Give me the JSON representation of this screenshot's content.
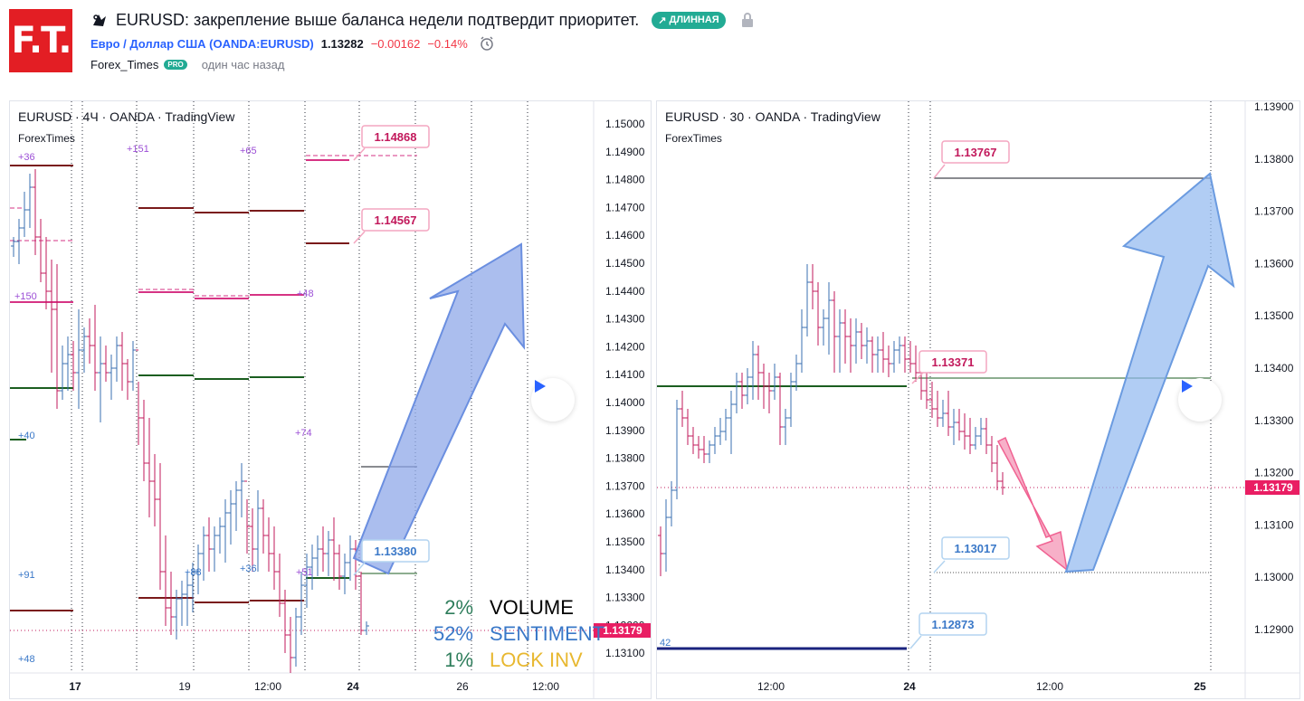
{
  "header": {
    "logo_text": "F.T.",
    "title": "EURUSD: закрепление выше баланса недели подтвердит приоритет.",
    "badge_long": "ДЛИННАЯ",
    "symbol_name": "Евро / Доллар США (OANDA:EURUSD)",
    "price": "1.13282",
    "change_abs": "−0.00162",
    "change_pct": "−0.14%",
    "author": "Forex_Times",
    "author_badge": "PRO",
    "time_ago": "один час назад"
  },
  "left_chart": {
    "legend": "EURUSD · 4Ч · OANDA · TradingView",
    "sub": "ForexTimes",
    "y_ticks": [
      "1.15000",
      "1.14900",
      "1.14800",
      "1.14700",
      "1.14600",
      "1.14500",
      "1.14400",
      "1.14300",
      "1.14200",
      "1.14100",
      "1.14000",
      "1.13900",
      "1.13800",
      "1.13700",
      "1.13600",
      "1.13500",
      "1.13400",
      "1.13300",
      "1.13200",
      "1.13100"
    ],
    "x_ticks": [
      "17",
      "19",
      "12:00",
      "24",
      "26",
      "12:00"
    ],
    "price_tag": "1.13179",
    "callouts": [
      "1.14868",
      "1.14567",
      "1.13380"
    ],
    "small_labels": [
      "+36",
      "+151",
      "+65",
      "+150",
      "+48",
      "+40",
      "+74",
      "+91",
      "+88",
      "+36",
      "+51",
      "+48"
    ],
    "stats": [
      {
        "value": "2%",
        "label": "VOLUME",
        "value_color": "#2e7d5b",
        "label_color": "#000000"
      },
      {
        "value": "52%",
        "label": "SENTIMENT",
        "value_color": "#3a78c8",
        "label_color": "#3a78c8"
      },
      {
        "value": "1%",
        "label": "LOCK INV",
        "value_color": "#2e7d5b",
        "label_color": "#e8b830"
      }
    ]
  },
  "right_chart": {
    "legend": "EURUSD · 30 · OANDA · TradingView",
    "sub": "ForexTimes",
    "y_ticks": [
      "1.13900",
      "1.13800",
      "1.13700",
      "1.13600",
      "1.13500",
      "1.13400",
      "1.13300",
      "1.13200",
      "1.13100",
      "1.13000",
      "1.12900"
    ],
    "x_ticks": [
      "12:00",
      "24",
      "12:00",
      "25"
    ],
    "price_tag": "1.13179",
    "callouts": [
      "1.13767",
      "1.13371",
      "1.13017",
      "1.12873"
    ],
    "small_label": "42"
  },
  "colors": {
    "accent_blue": "#2962ff",
    "down": "#f23645",
    "up_candle": "#3a6fb0",
    "down_candle": "#c2185b",
    "pink_level": "#d63384",
    "dark_red_level": "#7a1a1a",
    "green_level": "#1b5e20"
  }
}
